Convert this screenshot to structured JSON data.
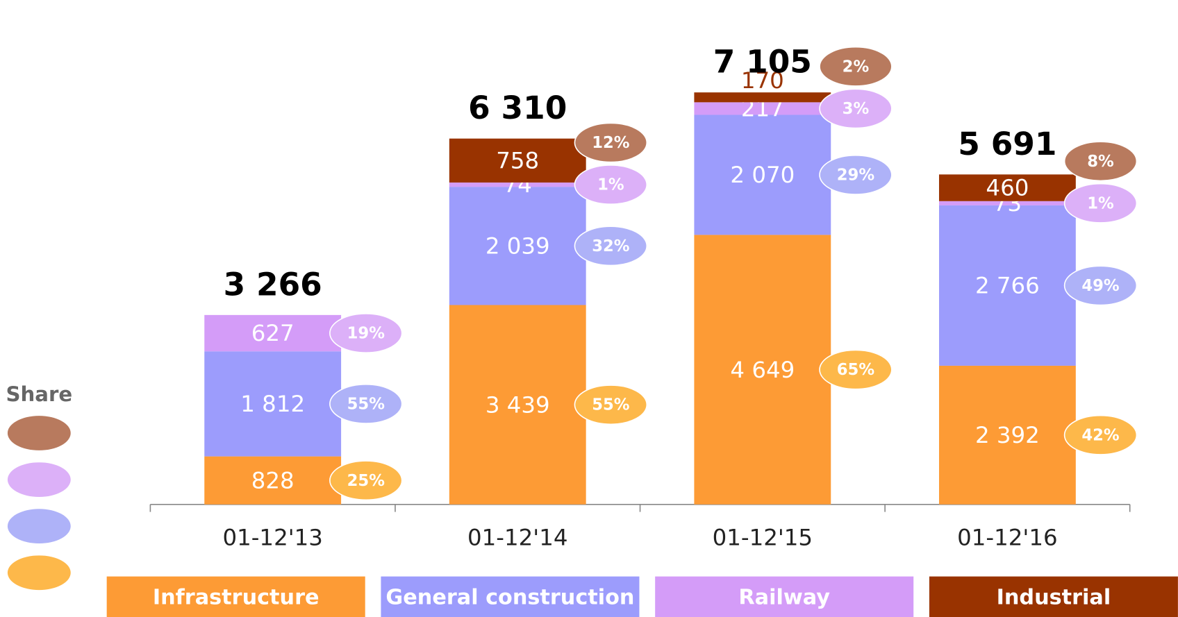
{
  "chart_data": {
    "type": "stacked_bar",
    "categories": [
      "01-12'13",
      "01-12'14",
      "01-12'15",
      "01-12'16"
    ],
    "ylim": [
      0,
      8700
    ],
    "share_title": "Share",
    "totals": [
      3266,
      6310,
      7105,
      5691
    ],
    "total_labels": [
      "3 266",
      "6 310",
      "7 105",
      "5 691"
    ],
    "series": [
      {
        "name": "Infrastructure",
        "color": "#fd9b35",
        "share_color": "#fdb84a",
        "values": [
          828,
          3439,
          4649,
          2392
        ],
        "value_labels": [
          "828",
          "3 439",
          "4 649",
          "2 392"
        ],
        "shares": [
          25,
          55,
          65,
          42
        ],
        "share_labels": [
          "25%",
          "55%",
          "65%",
          "42%"
        ]
      },
      {
        "name": "General construction",
        "color": "#9c9cfc",
        "share_color": "#aeb2f8",
        "values": [
          1812,
          2039,
          2070,
          2766
        ],
        "value_labels": [
          "1 812",
          "2 039",
          "2 070",
          "2 766"
        ],
        "shares": [
          55,
          32,
          29,
          49
        ],
        "share_labels": [
          "55%",
          "32%",
          "29%",
          "49%"
        ]
      },
      {
        "name": "Railway",
        "color": "#d49cf8",
        "share_color": "#dcb0f8",
        "values": [
          627,
          74,
          217,
          73
        ],
        "value_labels": [
          "627",
          "74",
          "217",
          "73"
        ],
        "shares": [
          19,
          1,
          3,
          1
        ],
        "share_labels": [
          "19%",
          "1%",
          "3%",
          "1%"
        ]
      },
      {
        "name": "Industrial",
        "color": "#993300",
        "share_color": "#b87a5e",
        "values": [
          null,
          758,
          170,
          460
        ],
        "value_labels": [
          null,
          "758",
          "170",
          "460"
        ],
        "shares": [
          null,
          12,
          2,
          8
        ],
        "share_labels": [
          null,
          "12%",
          "2%",
          "8%"
        ]
      }
    ]
  }
}
